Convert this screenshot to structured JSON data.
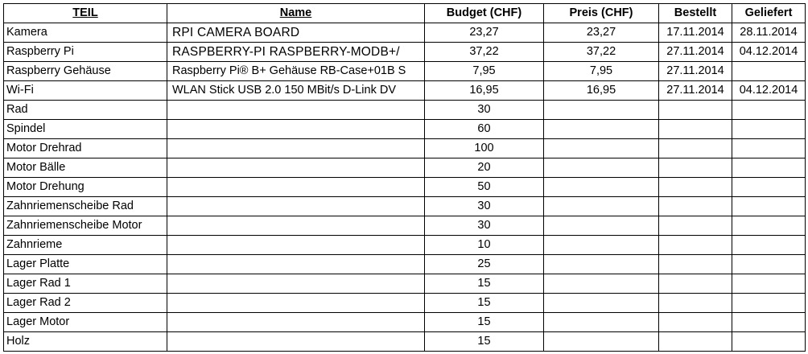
{
  "columns": {
    "teil": "TEIL",
    "name": "Name",
    "budget": "Budget (CHF)",
    "preis": "Preis (CHF)",
    "bestellt": "Bestellt",
    "geliefert": "Geliefert"
  },
  "rows": [
    {
      "teil": "Kamera",
      "name": "RPI CAMERA BOARD",
      "budget": "23,27",
      "preis": "23,27",
      "bestellt": "17.11.2014",
      "geliefert": "28.11.2014"
    },
    {
      "teil": "Raspberry Pi",
      "name": "RASPBERRY-PI  RASPBERRY-MODB+/",
      "budget": "37,22",
      "preis": "37,22",
      "bestellt": "27.11.2014",
      "geliefert": "04.12.2014"
    },
    {
      "teil": "Raspberry Gehäuse",
      "name": "Raspberry Pi® B+ Gehäuse RB-Case+01B S",
      "budget": "7,95",
      "preis": "7,95",
      "bestellt": "27.11.2014",
      "geliefert": ""
    },
    {
      "teil": "Wi-Fi",
      "name": "WLAN Stick USB 2.0 150 MBit/s D-Link DV",
      "budget": "16,95",
      "preis": "16,95",
      "bestellt": "27.11.2014",
      "geliefert": "04.12.2014"
    },
    {
      "teil": "Rad",
      "name": "",
      "budget": "30",
      "preis": "",
      "bestellt": "",
      "geliefert": ""
    },
    {
      "teil": "Spindel",
      "name": "",
      "budget": "60",
      "preis": "",
      "bestellt": "",
      "geliefert": ""
    },
    {
      "teil": "Motor Drehrad",
      "name": "",
      "budget": "100",
      "preis": "",
      "bestellt": "",
      "geliefert": ""
    },
    {
      "teil": "Motor Bälle",
      "name": "",
      "budget": "20",
      "preis": "",
      "bestellt": "",
      "geliefert": ""
    },
    {
      "teil": "Motor Drehung",
      "name": "",
      "budget": "50",
      "preis": "",
      "bestellt": "",
      "geliefert": ""
    },
    {
      "teil": "Zahnriemenscheibe Rad",
      "name": "",
      "budget": "30",
      "preis": "",
      "bestellt": "",
      "geliefert": ""
    },
    {
      "teil": "Zahnriemenscheibe Motor",
      "name": "",
      "budget": "30",
      "preis": "",
      "bestellt": "",
      "geliefert": ""
    },
    {
      "teil": "Zahnrieme",
      "name": "",
      "budget": "10",
      "preis": "",
      "bestellt": "",
      "geliefert": ""
    },
    {
      "teil": "Lager Platte",
      "name": "",
      "budget": "25",
      "preis": "",
      "bestellt": "",
      "geliefert": ""
    },
    {
      "teil": "Lager Rad 1",
      "name": "",
      "budget": "15",
      "preis": "",
      "bestellt": "",
      "geliefert": ""
    },
    {
      "teil": "Lager Rad 2",
      "name": "",
      "budget": "15",
      "preis": "",
      "bestellt": "",
      "geliefert": ""
    },
    {
      "teil": "Lager Motor",
      "name": "",
      "budget": "15",
      "preis": "",
      "bestellt": "",
      "geliefert": ""
    },
    {
      "teil": "Holz",
      "name": "",
      "budget": "15",
      "preis": "",
      "bestellt": "",
      "geliefert": ""
    }
  ]
}
